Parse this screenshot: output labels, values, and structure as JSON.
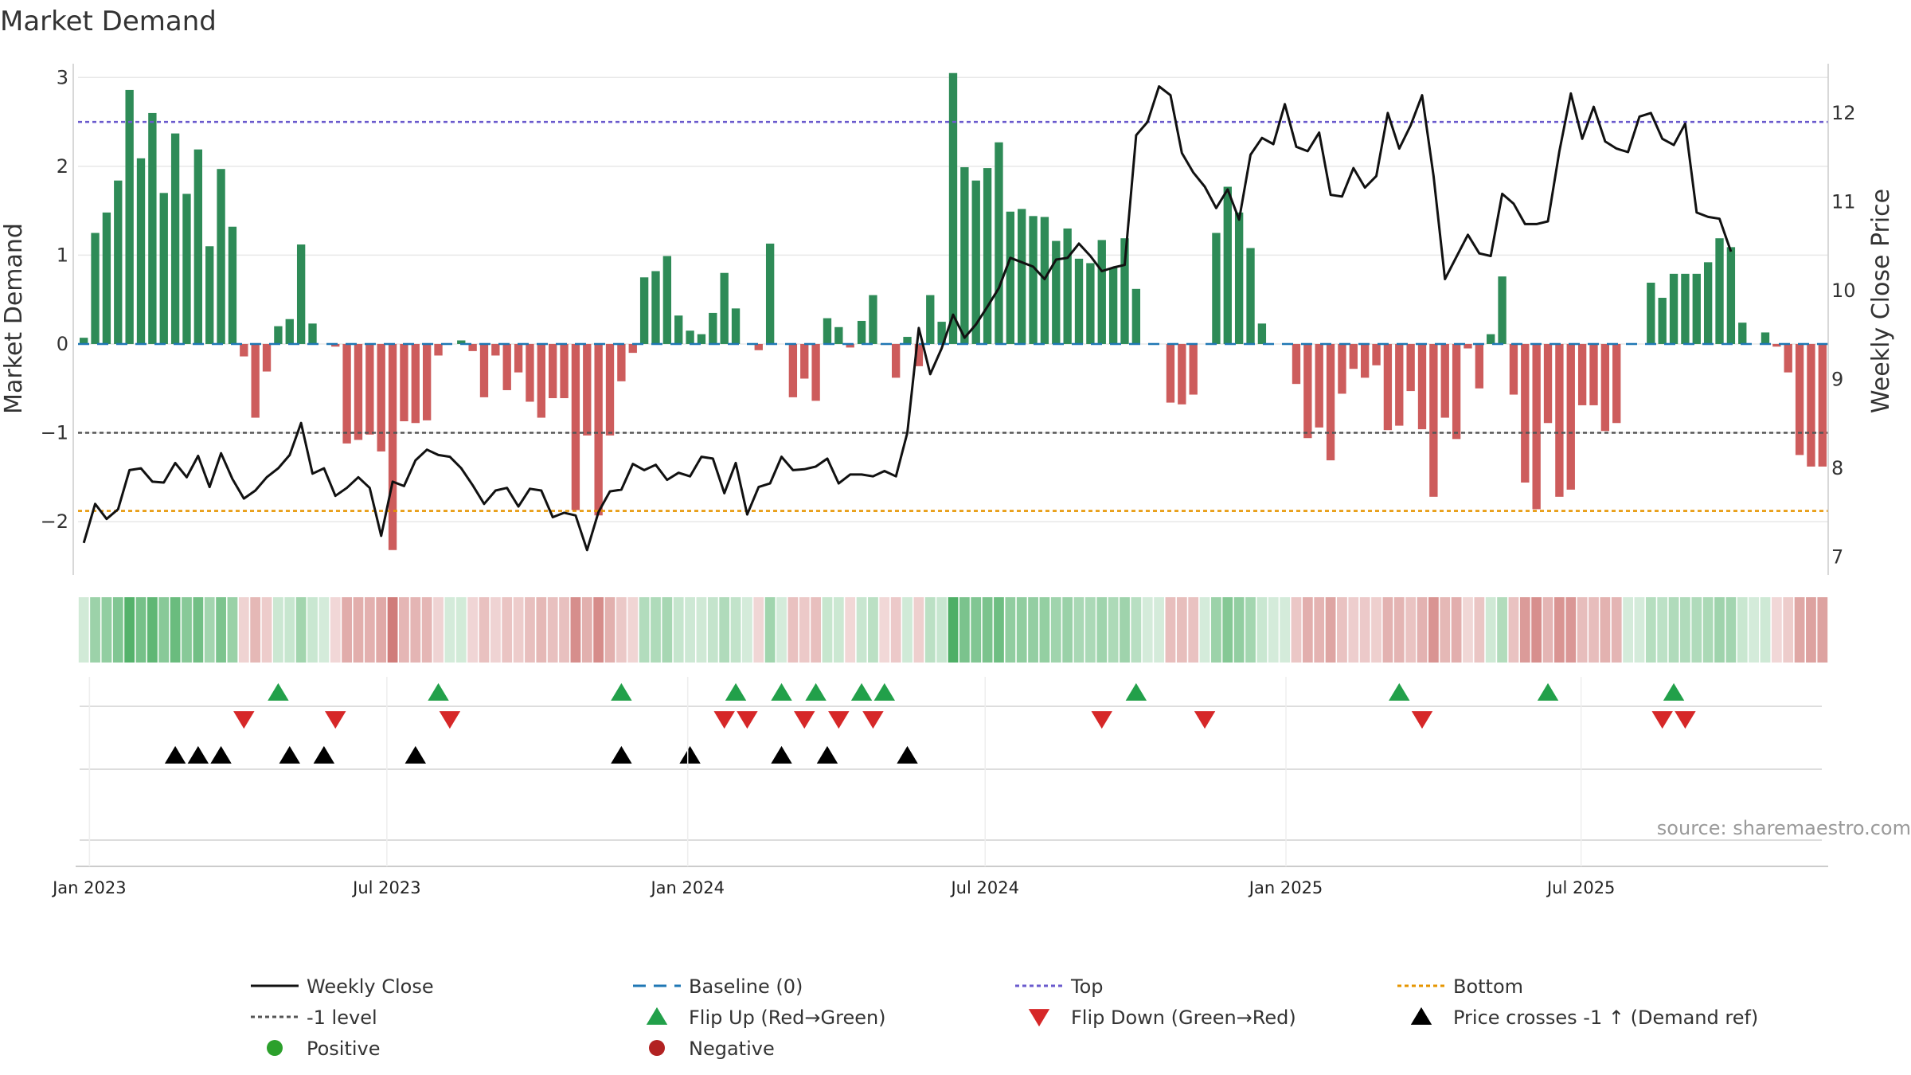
{
  "chart_data": {
    "type": "bar",
    "title": "Market Demand",
    "ylabel": "Market Demand",
    "y2label": "Weekly Close Price",
    "ylim": [
      -2.6,
      3.2
    ],
    "y2lim": [
      6.8,
      12.6
    ],
    "yticks": [
      3,
      2,
      1,
      0,
      -1,
      -2
    ],
    "ytick_labels": [
      "3",
      "2",
      "1",
      "0",
      "−1",
      "−2"
    ],
    "y2ticks": [
      12,
      11,
      10,
      9,
      8,
      7
    ],
    "y2tick_labels": [
      "12",
      "11",
      "10",
      "9",
      "8",
      "7"
    ],
    "reference_lines": {
      "top": 2.5,
      "minus_one": -1,
      "bottom": -1.88,
      "baseline": 0
    },
    "date_ticks": [
      {
        "index": 1.0,
        "label": "Jan 2023"
      },
      {
        "index": 27.0,
        "label": "Jul 2023"
      },
      {
        "index": 53.3,
        "label": "Jan 2024"
      },
      {
        "index": 79.3,
        "label": "Jul 2024"
      },
      {
        "index": 105.6,
        "label": "Jan 2025"
      },
      {
        "index": 131.4,
        "label": "Jul 2025"
      }
    ],
    "demand": [
      0.07,
      1.25,
      1.48,
      1.84,
      2.86,
      2.09,
      2.6,
      1.7,
      2.37,
      1.69,
      2.19,
      1.1,
      1.97,
      1.32,
      -0.14,
      -0.83,
      -0.31,
      0.2,
      0.28,
      1.12,
      0.23,
      0.0,
      -0.03,
      -1.12,
      -1.08,
      -1.02,
      -1.21,
      -2.32,
      -0.87,
      -0.89,
      -0.86,
      -0.13,
      0.0,
      0.04,
      -0.08,
      -0.6,
      -0.13,
      -0.52,
      -0.32,
      -0.65,
      -0.83,
      -0.61,
      -0.61,
      -1.87,
      -1.03,
      -1.93,
      -1.03,
      -0.42,
      -0.1,
      0.75,
      0.82,
      0.99,
      0.32,
      0.15,
      0.11,
      0.35,
      0.8,
      0.4,
      0.0,
      -0.07,
      1.13,
      0.0,
      -0.6,
      -0.39,
      -0.64,
      0.29,
      0.19,
      -0.04,
      0.26,
      0.55,
      -0.01,
      -0.38,
      0.08,
      -0.25,
      0.55,
      0.25,
      3.05,
      1.99,
      1.84,
      1.98,
      2.27,
      1.49,
      1.52,
      1.44,
      1.43,
      1.16,
      1.3,
      0.96,
      0.91,
      1.17,
      0.86,
      1.19,
      0.62,
      0.0,
      0.0,
      -0.66,
      -0.68,
      -0.57,
      0.0,
      1.25,
      1.77,
      1.48,
      1.08,
      0.23,
      0.0,
      0.0,
      -0.45,
      -1.06,
      -0.94,
      -1.31,
      -0.56,
      -0.28,
      -0.38,
      -0.24,
      -0.97,
      -0.92,
      -0.53,
      -0.96,
      -1.72,
      -0.83,
      -1.07,
      -0.05,
      -0.5,
      0.11,
      0.76,
      -0.57,
      -1.56,
      -1.86,
      -0.89,
      -1.72,
      -1.64,
      -0.69,
      -0.69,
      -0.98,
      -0.89,
      0.0,
      0.0,
      0.69,
      0.52,
      0.79,
      0.79,
      0.79,
      0.92,
      1.19,
      1.09,
      0.24,
      0.0,
      0.13,
      -0.03,
      -0.32,
      -1.25,
      -1.38,
      -1.38
    ],
    "close": [
      7.16,
      7.6,
      7.43,
      7.54,
      7.98,
      8.0,
      7.85,
      7.84,
      8.06,
      7.9,
      8.14,
      7.79,
      8.17,
      7.88,
      7.66,
      7.75,
      7.9,
      8.0,
      8.15,
      8.51,
      7.94,
      8.0,
      7.69,
      7.78,
      7.9,
      7.78,
      7.24,
      7.85,
      7.8,
      8.09,
      8.21,
      8.15,
      8.13,
      8.0,
      7.81,
      7.6,
      7.75,
      7.78,
      7.57,
      7.77,
      7.75,
      7.45,
      7.5,
      7.47,
      7.08,
      7.51,
      7.74,
      7.76,
      8.05,
      7.98,
      8.04,
      7.87,
      7.95,
      7.91,
      8.13,
      8.11,
      7.72,
      8.06,
      7.48,
      7.79,
      7.83,
      8.13,
      7.98,
      7.99,
      8.02,
      8.11,
      7.83,
      7.93,
      7.93,
      7.91,
      7.97,
      7.91,
      8.4,
      9.58,
      9.06,
      9.35,
      9.73,
      9.47,
      9.62,
      9.82,
      10.03,
      10.37,
      10.32,
      10.27,
      10.13,
      10.35,
      10.37,
      10.53,
      10.39,
      10.22,
      10.26,
      10.29,
      11.75,
      11.9,
      12.3,
      12.2,
      11.55,
      11.33,
      11.17,
      10.93,
      11.14,
      10.8,
      11.53,
      11.72,
      11.65,
      12.1,
      11.62,
      11.57,
      11.78,
      11.08,
      11.06,
      11.38,
      11.16,
      11.29,
      12.0,
      11.6,
      11.86,
      12.2,
      11.29,
      10.13,
      10.38,
      10.63,
      10.42,
      10.39,
      11.09,
      10.98,
      10.75,
      10.75,
      10.78,
      11.57,
      12.22,
      11.71,
      12.07,
      11.68,
      11.6,
      11.56,
      11.96,
      12.0,
      11.71,
      11.64,
      11.88,
      10.88,
      10.83,
      10.81,
      10.44
    ]
  },
  "signals": {
    "flip_up": [
      17,
      31,
      47,
      57,
      61,
      64,
      68,
      70,
      92,
      115,
      128,
      139
    ],
    "flip_down": [
      14,
      22,
      32,
      56,
      58,
      63,
      66,
      69,
      89,
      98,
      117,
      138,
      140
    ],
    "price_cross": [
      8,
      10,
      12,
      18,
      21,
      29,
      47,
      53,
      61,
      65,
      72
    ]
  },
  "source_text": "source: sharemaestro.com",
  "colors": {
    "pos_bar": "#2e8b57",
    "neg_bar": "#cd5c5c",
    "line": "#111111",
    "baseline": "#1f77b4",
    "top": "#6a5acd",
    "minus_one": "#555555",
    "bottom": "#e69500",
    "flip_up": "#22a04a",
    "flip_down": "#d62728",
    "cross": "#000000",
    "positive_dot": "#2ca02c",
    "negative_dot": "#b22222"
  },
  "legend": [
    {
      "label": "Weekly Close",
      "kind": "solid",
      "color": "#111111"
    },
    {
      "label": "Baseline (0)",
      "kind": "dashed",
      "color": "#1f77b4"
    },
    {
      "label": "Top",
      "kind": "dotted",
      "color": "#6a5acd"
    },
    {
      "label": "Bottom",
      "kind": "dotted",
      "color": "#e69500"
    },
    {
      "label": "-1 level",
      "kind": "dotted",
      "color": "#555555"
    },
    {
      "label": "Flip Up (Red→Green)",
      "kind": "tri-up",
      "color": "#22a04a"
    },
    {
      "label": "Flip Down (Green→Red)",
      "kind": "tri-down",
      "color": "#d62728"
    },
    {
      "label": "Price crosses -1 ↑ (Demand ref)",
      "kind": "tri-up",
      "color": "#000000"
    },
    {
      "label": "Positive",
      "kind": "dot",
      "color": "#2ca02c"
    },
    {
      "label": "Negative",
      "kind": "dot",
      "color": "#b22222"
    }
  ]
}
